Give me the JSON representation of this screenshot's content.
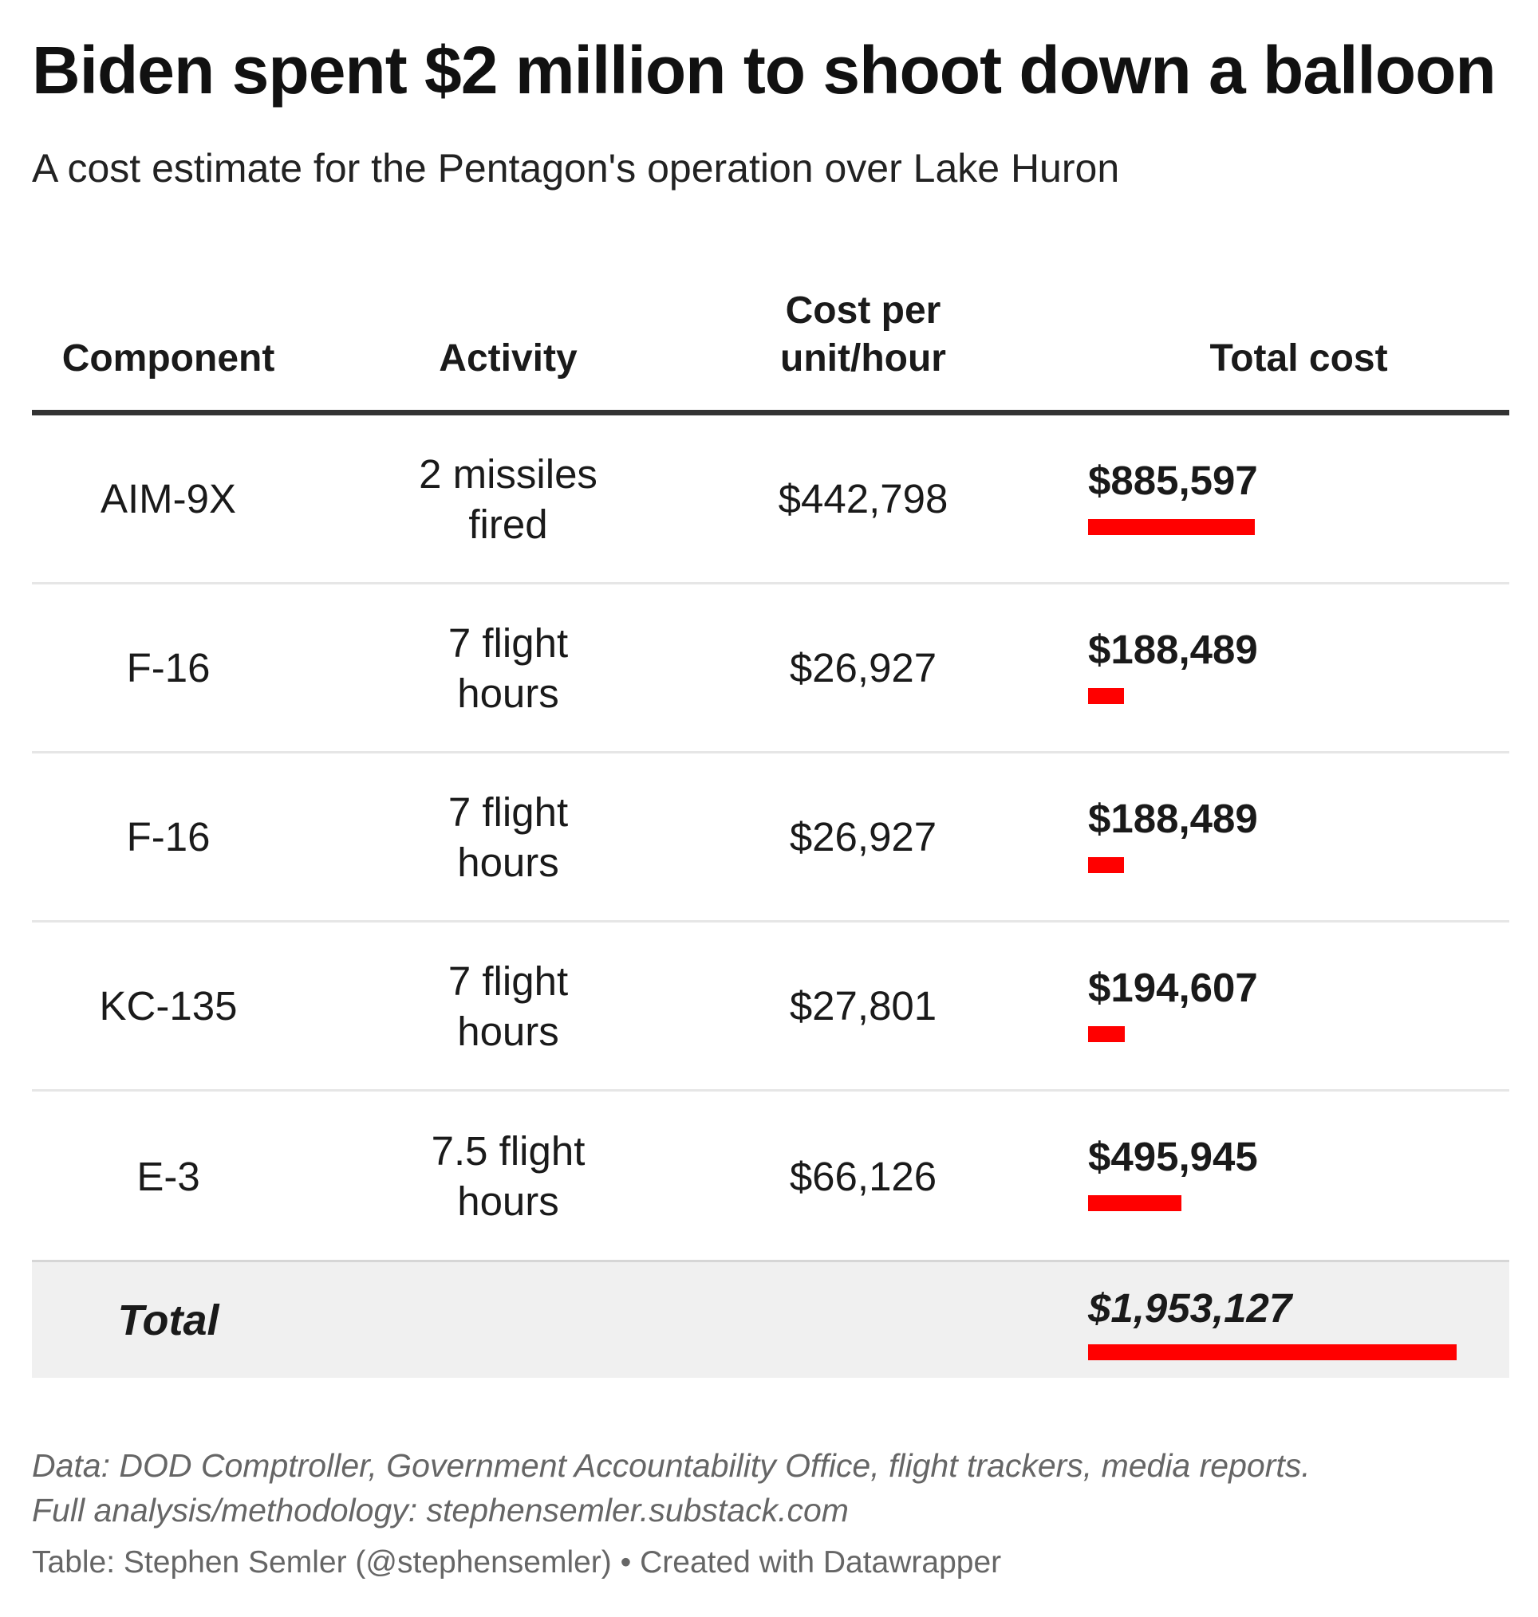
{
  "title": "Biden spent $2 million to shoot down a balloon",
  "subtitle": "A cost estimate for the Pentagon's operation over Lake Huron",
  "chart_data": {
    "type": "table",
    "columns": [
      "Component",
      "Activity",
      "Cost per unit/hour",
      "Total cost"
    ],
    "header": {
      "component": "Component",
      "activity": "Activity",
      "cost_line1": "Cost per",
      "cost_line2": "unit/hour",
      "total": "Total cost"
    },
    "rows": [
      {
        "component": "AIM-9X",
        "activity_line1": "2 missiles",
        "activity_line2": "fired",
        "cost": "$442,798",
        "total": "$885,597",
        "total_value": 885597
      },
      {
        "component": "F-16",
        "activity_line1": "7 flight",
        "activity_line2": "hours",
        "cost": "$26,927",
        "total": "$188,489",
        "total_value": 188489
      },
      {
        "component": "F-16",
        "activity_line1": "7 flight",
        "activity_line2": "hours",
        "cost": "$26,927",
        "total": "$188,489",
        "total_value": 188489
      },
      {
        "component": "KC-135",
        "activity_line1": "7 flight",
        "activity_line2": "hours",
        "cost": "$27,801",
        "total": "$194,607",
        "total_value": 194607
      },
      {
        "component": "E-3",
        "activity_line1": "7.5 flight",
        "activity_line2": "hours",
        "cost": "$66,126",
        "total": "$495,945",
        "total_value": 495945
      }
    ],
    "summary": {
      "label": "Total",
      "total": "$1,953,127",
      "total_value": 1953127
    },
    "bar_color": "#ff0000"
  },
  "notes": {
    "line1": "Data: DOD Comptroller, Government Accountability Office, flight trackers, media reports.",
    "line2": "Full analysis/methodology: stephensemler.substack.com"
  },
  "credit": "Table: Stephen Semler (@stephensemler) • Created with Datawrapper"
}
